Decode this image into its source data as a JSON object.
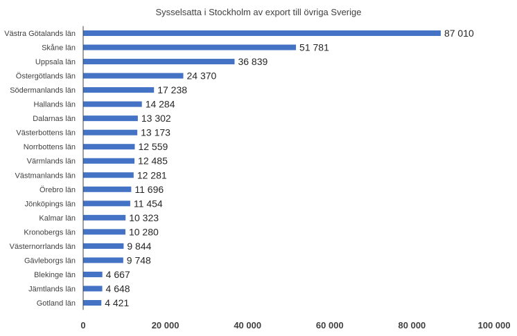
{
  "chart_data": {
    "type": "bar",
    "orientation": "horizontal",
    "title": "Sysselsatta i Stockholm av export till övriga Sverige",
    "categories": [
      "Västra Götalands län",
      "Skåne län",
      "Uppsala län",
      "Östergötlands län",
      "Södermanlands län",
      "Hallands län",
      "Dalarnas län",
      "Västerbottens län",
      "Norrbottens län",
      "Värmlands län",
      "Västmanlands län",
      "Örebro län",
      "Jönköpings län",
      "Kalmar län",
      "Kronobergs län",
      "Västernorrlands län",
      "Gävleborgs län",
      "Blekinge län",
      "Jämtlands län",
      "Gotland län"
    ],
    "values": [
      87010,
      51781,
      36839,
      24370,
      17238,
      14284,
      13302,
      13173,
      12559,
      12485,
      12281,
      11696,
      11454,
      10323,
      10280,
      9844,
      9748,
      4667,
      4648,
      4421
    ],
    "value_labels": [
      "87 010",
      "51 781",
      "36 839",
      "24 370",
      "17 238",
      "14 284",
      "13 302",
      "13 173",
      "12 559",
      "12 485",
      "12 281",
      "11 696",
      "11 454",
      "10 323",
      "10 280",
      "9 844",
      "9 748",
      "4 667",
      "4 648",
      "4 421"
    ],
    "xlim": [
      0,
      100000
    ],
    "x_ticks": [
      0,
      20000,
      40000,
      60000,
      80000,
      100000
    ],
    "x_tick_labels": [
      "0",
      "20 000",
      "40 000",
      "60 000",
      "80 000",
      "100 000"
    ],
    "grid": false,
    "legend": "none",
    "bar_color": "#4472C4",
    "xlabel": "",
    "ylabel": ""
  }
}
